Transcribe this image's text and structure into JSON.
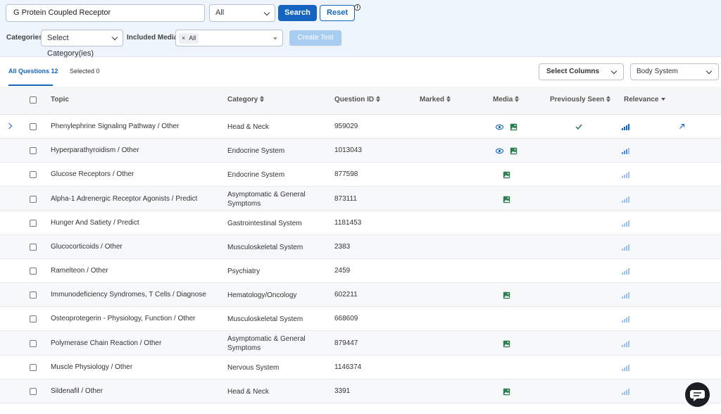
{
  "search": {
    "value": "G Protein Coupled Receptor",
    "scope": "All",
    "search_label": "Search",
    "reset_label": "Reset",
    "info": "i"
  },
  "filters": {
    "categories_label": "Categories",
    "categories_placeholder": "Select Category(ies)",
    "media_label": "Included Media",
    "media_tag_remove": "×",
    "media_tag": "All",
    "create_test_label": "Create Test"
  },
  "tabs": {
    "all": "All Questions 12",
    "selected": "Selected 0"
  },
  "column_select": "Select Columns",
  "group_select": "Body System",
  "columns": {
    "topic": "Topic",
    "category": "Category",
    "question_id": "Question ID",
    "marked": "Marked",
    "media": "Media",
    "previously_seen": "Previously Seen",
    "relevance": "Relevance"
  },
  "colors": {
    "accent": "#1565c0",
    "media_icon": "#2e7d4f",
    "relevance_strong": "#1565c0",
    "relevance_weak": "#9ec3ea"
  },
  "rows": [
    {
      "topic": "Phenylephrine Signaling Pathway / Other",
      "category": "Head & Neck",
      "qid": "959029",
      "media": [
        "eye-icon",
        "image-icon"
      ],
      "seen": true,
      "relevance": 4,
      "expandable": true,
      "open_icon": true
    },
    {
      "topic": "Hyperparathyroidism / Other",
      "category": "Endocrine System",
      "qid": "1013043",
      "media": [
        "eye-icon",
        "image-icon"
      ],
      "seen": false,
      "relevance": 3
    },
    {
      "topic": "Glucose Receptors / Other",
      "category": "Endocrine System",
      "qid": "877598",
      "media": [
        "image-icon"
      ],
      "seen": false,
      "relevance": 2
    },
    {
      "topic": "Alpha-1 Adrenergic Receptor Agonists / Predict",
      "category": "Asymptomatic & General Symptoms",
      "qid": "873111",
      "media": [
        "image-icon"
      ],
      "seen": false,
      "relevance": 2
    },
    {
      "topic": "Hunger And Satiety / Predict",
      "category": "Gastrointestinal System",
      "qid": "1181453",
      "media": [],
      "seen": false,
      "relevance": 2
    },
    {
      "topic": "Glucocorticoids / Other",
      "category": "Musculoskeletal System",
      "qid": "2383",
      "media": [],
      "seen": false,
      "relevance": 2
    },
    {
      "topic": "Ramelteon / Other",
      "category": "Psychiatry",
      "qid": "2459",
      "media": [],
      "seen": false,
      "relevance": 2
    },
    {
      "topic": "Immunodeficiency Syndromes, T Cells / Diagnose",
      "category": "Hematology/Oncology",
      "qid": "602211",
      "media": [
        "image-icon"
      ],
      "seen": false,
      "relevance": 2
    },
    {
      "topic": "Osteoprotegerin - Physiology, Function / Other",
      "category": "Musculoskeletal System",
      "qid": "668609",
      "media": [],
      "seen": false,
      "relevance": 2
    },
    {
      "topic": "Polymerase Chain Reaction / Other",
      "category": "Asymptomatic & General Symptoms",
      "qid": "879447",
      "media": [
        "image-icon"
      ],
      "seen": false,
      "relevance": 2
    },
    {
      "topic": "Muscle Physiology / Other",
      "category": "Nervous System",
      "qid": "1146374",
      "media": [],
      "seen": false,
      "relevance": 2
    },
    {
      "topic": "Sildenafil / Other",
      "category": "Head & Neck",
      "qid": "3391",
      "media": [
        "image-icon"
      ],
      "seen": false,
      "relevance": 2
    }
  ]
}
